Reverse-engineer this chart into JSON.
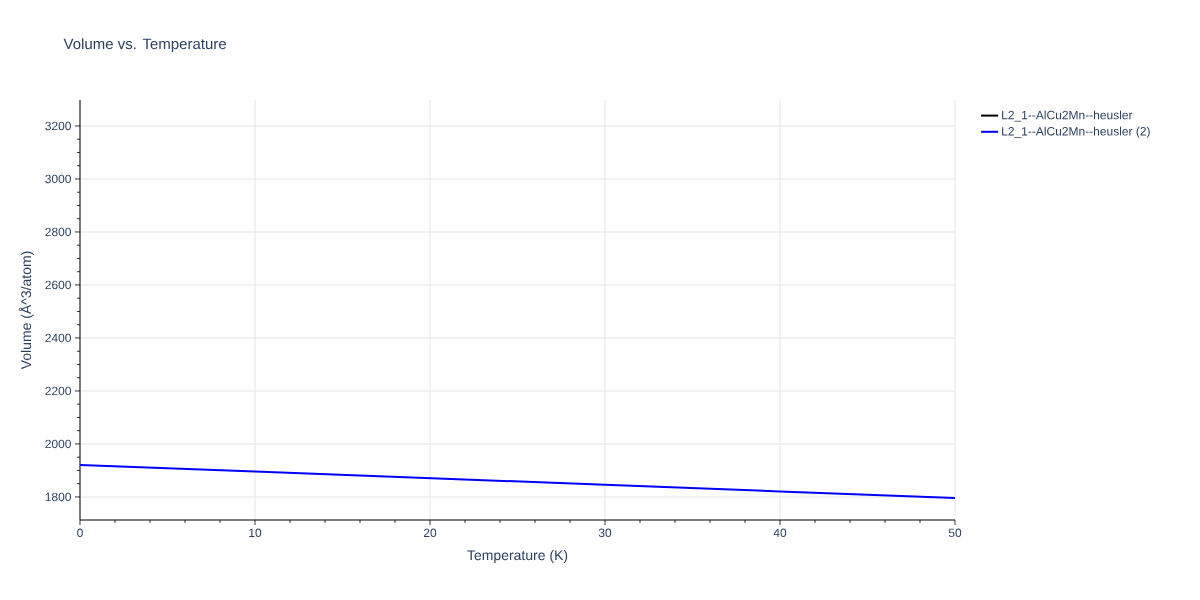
{
  "chart_data": {
    "type": "line",
    "title": "Volume vs. Temperature",
    "xlabel": "Temperature (K)",
    "ylabel": "Volume (Å^3/atom)",
    "x": [
      0,
      10,
      20,
      30,
      40,
      50
    ],
    "series": [
      {
        "name": "L2_1--AlCu2Mn--heusler",
        "color": "#000000",
        "values": [
          null,
          null,
          null,
          null,
          null,
          null
        ]
      },
      {
        "name": "L2_1--AlCu2Mn--heusler (2)",
        "color": "#0000ff",
        "values": [
          1921,
          1896,
          1871,
          1846,
          1821,
          1796
        ]
      }
    ],
    "xlim": [
      0,
      50
    ],
    "xticks": [
      0,
      10,
      20,
      30,
      40,
      50
    ],
    "ylim": [
      1713,
      3298
    ],
    "yticks": [
      1800,
      2000,
      2200,
      2400,
      2600,
      2800,
      3000,
      3200
    ],
    "grid": true,
    "legend": "top right",
    "marker": "none",
    "line_style": "solid"
  }
}
